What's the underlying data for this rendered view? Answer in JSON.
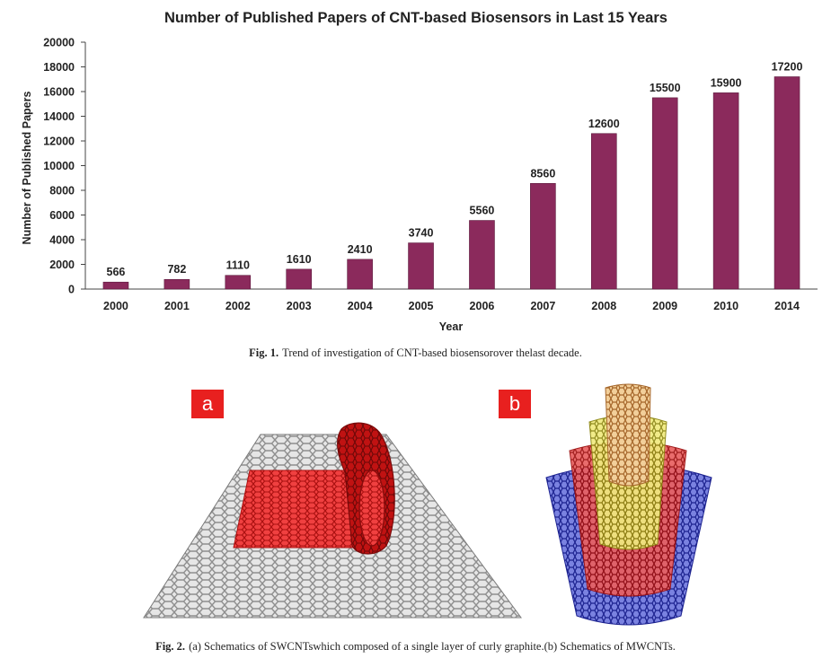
{
  "chart_data": {
    "type": "bar",
    "title": "Number of Published Papers of CNT-based Biosensors in Last 15 Years",
    "xlabel": "Year",
    "ylabel": "Number of Published Papers",
    "categories": [
      "2000",
      "2001",
      "2002",
      "2003",
      "2004",
      "2005",
      "2006",
      "2007",
      "2008",
      "2009",
      "2010",
      "2014"
    ],
    "values": [
      566,
      782,
      1110,
      1610,
      2410,
      3740,
      5560,
      8560,
      12600,
      15500,
      15900,
      17200
    ],
    "data_labels": [
      "566",
      "782",
      "1110",
      "1610",
      "2410",
      "3740",
      "5560",
      "8560",
      "12600",
      "15500",
      "15900",
      "17200"
    ],
    "yticks": [
      "0",
      "2000",
      "4000",
      "6000",
      "8000",
      "10000",
      "12000",
      "14000",
      "16000",
      "18000",
      "20000"
    ],
    "ylim": [
      0,
      20000
    ],
    "grid": false,
    "bar_color": "#8b2a5c"
  },
  "figure1": {
    "label": "Fig. 1.",
    "caption": "Trend of investigation of CNT-based biosensorover thelast decade."
  },
  "figure2": {
    "label": "Fig. 2.",
    "caption": "(a) Schematics of SWCNTswhich composed of a single layer of curly graphite.(b) Schematics of MWCNTs.",
    "panel_a": "a",
    "panel_b": "b"
  },
  "colors": {
    "graphene": "#9a9a9a",
    "red_sheet": "#d41414",
    "tube_outer": "#2a32b8",
    "tube_mid": "#d01a1a",
    "tube_inner": "#d9d21e",
    "tube_core": "#c98a3c"
  }
}
